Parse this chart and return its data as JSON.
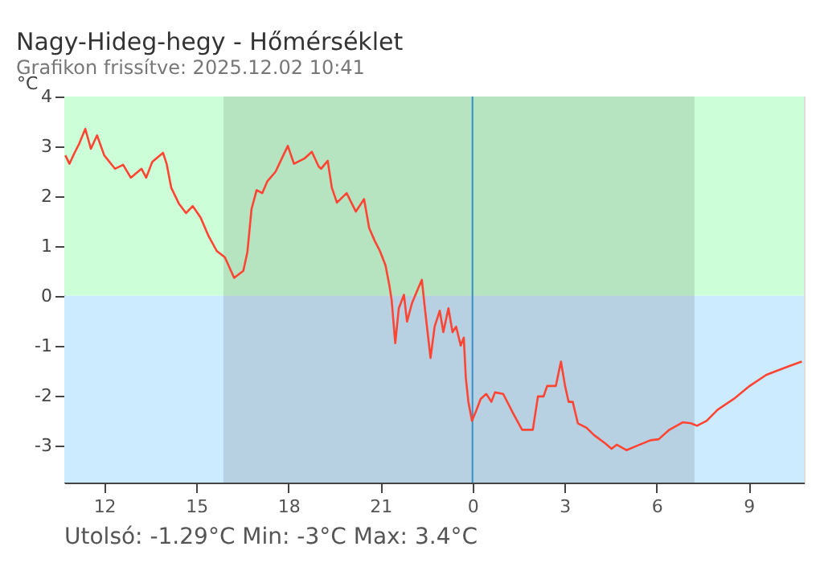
{
  "chart_data": {
    "type": "line",
    "title": "Nagy-Hideg-hegy - Hőmérséklet",
    "subtitle": "Grafikon frissítve: 2025.12.02 10:41",
    "ylabel": "°C",
    "annotations": [
      "Utolsó: -1.29°C  Min: -3°C  Max: 3.4°C"
    ],
    "xlim": [
      "2025-12-01T10:42",
      "2025-12-02T10:48"
    ],
    "ylim": [
      -3.75,
      4
    ],
    "xticks": [
      {
        "value": "2025-12-01T12:00",
        "label": "12"
      },
      {
        "value": "2025-12-01T15:00",
        "label": "15"
      },
      {
        "value": "2025-12-01T18:00",
        "label": "18"
      },
      {
        "value": "2025-12-01T21:00",
        "label": "21"
      },
      {
        "value": "2025-12-02T00:00",
        "label": "0"
      },
      {
        "value": "2025-12-02T03:00",
        "label": "3"
      },
      {
        "value": "2025-12-02T06:00",
        "label": "6"
      },
      {
        "value": "2025-12-02T09:00",
        "label": "9"
      }
    ],
    "yticks": [
      -3,
      -2,
      -1,
      0,
      1,
      2,
      3,
      4
    ],
    "grid": false,
    "line_style": "solid",
    "marker": "none",
    "bands": [
      {
        "axis": "y",
        "from": 0,
        "to": 4,
        "label": null,
        "color": "#ccffd8"
      },
      {
        "axis": "y",
        "from": -3.75,
        "to": 0,
        "label": null,
        "color": "#cdebff"
      },
      {
        "axis": "x",
        "from": "2025-12-01T15:53",
        "to": "2025-12-02T07:14",
        "label": null,
        "color": "#1c1c1c"
      }
    ],
    "ref_lines": [
      {
        "axis": "x",
        "value": "2025-12-02T00:00",
        "label": null,
        "color": "#3a8fc8"
      }
    ],
    "series": [
      {
        "color": "#ff4433",
        "x": [
          "2025-12-01T10:44",
          "2025-12-01T10:52",
          "2025-12-01T11:02",
          "2025-12-01T11:11",
          "2025-12-01T11:23",
          "2025-12-01T11:34",
          "2025-12-01T11:46",
          "2025-12-01T12:00",
          "2025-12-01T12:21",
          "2025-12-01T12:37",
          "2025-12-01T12:52",
          "2025-12-01T13:13",
          "2025-12-01T13:22",
          "2025-12-01T13:34",
          "2025-12-01T13:55",
          "2025-12-01T14:02",
          "2025-12-01T14:11",
          "2025-12-01T14:26",
          "2025-12-01T14:40",
          "2025-12-01T14:53",
          "2025-12-01T15:08",
          "2025-12-01T15:24",
          "2025-12-01T15:40",
          "2025-12-01T15:56",
          "2025-12-01T16:14",
          "2025-12-01T16:32",
          "2025-12-01T16:40",
          "2025-12-01T16:48",
          "2025-12-01T16:58",
          "2025-12-01T17:09",
          "2025-12-01T17:19",
          "2025-12-01T17:35",
          "2025-12-01T17:46",
          "2025-12-01T17:59",
          "2025-12-01T18:11",
          "2025-12-01T18:32",
          "2025-12-01T18:46",
          "2025-12-01T18:59",
          "2025-12-01T19:04",
          "2025-12-01T19:17",
          "2025-12-01T19:25",
          "2025-12-01T19:35",
          "2025-12-01T19:54",
          "2025-12-01T20:12",
          "2025-12-01T20:28",
          "2025-12-01T20:38",
          "2025-12-01T20:49",
          "2025-12-01T20:59",
          "2025-12-01T21:10",
          "2025-12-01T21:18",
          "2025-12-01T21:22",
          "2025-12-01T21:29",
          "2025-12-01T21:36",
          "2025-12-01T21:46",
          "2025-12-01T21:52",
          "2025-12-01T22:02",
          "2025-12-01T22:13",
          "2025-12-01T22:21",
          "2025-12-01T22:28",
          "2025-12-01T22:38",
          "2025-12-01T22:46",
          "2025-12-01T22:56",
          "2025-12-01T23:03",
          "2025-12-01T23:13",
          "2025-12-01T23:21",
          "2025-12-01T23:28",
          "2025-12-01T23:37",
          "2025-12-01T23:43",
          "2025-12-01T23:47",
          "2025-12-01T23:52",
          "2025-12-01T23:59",
          "2025-12-02T00:08",
          "2025-12-02T00:16",
          "2025-12-02T00:27",
          "2025-12-02T00:37",
          "2025-12-02T00:44",
          "2025-12-02T01:00",
          "2025-12-02T01:19",
          "2025-12-02T01:37",
          "2025-12-02T01:58",
          "2025-12-02T02:08",
          "2025-12-02T02:19",
          "2025-12-02T02:26",
          "2025-12-02T02:43",
          "2025-12-02T02:53",
          "2025-12-02T03:01",
          "2025-12-02T03:08",
          "2025-12-02T03:16",
          "2025-12-02T03:26",
          "2025-12-02T03:43",
          "2025-12-02T03:58",
          "2025-12-02T04:19",
          "2025-12-02T04:32",
          "2025-12-02T04:42",
          "2025-12-02T05:01",
          "2025-12-02T05:22",
          "2025-12-02T05:48",
          "2025-12-02T06:04",
          "2025-12-02T06:25",
          "2025-12-02T06:51",
          "2025-12-02T07:07",
          "2025-12-02T07:19",
          "2025-12-02T07:38",
          "2025-12-02T07:59",
          "2025-12-02T08:31",
          "2025-12-02T09:02",
          "2025-12-02T09:34",
          "2025-12-02T09:54",
          "2025-12-02T10:20",
          "2025-12-02T10:44"
        ],
        "values": [
          2.82,
          2.65,
          2.87,
          3.05,
          3.35,
          2.95,
          3.22,
          2.82,
          2.55,
          2.63,
          2.37,
          2.55,
          2.37,
          2.69,
          2.87,
          2.65,
          2.17,
          1.85,
          1.66,
          1.8,
          1.58,
          1.2,
          0.9,
          0.77,
          0.36,
          0.5,
          0.88,
          1.74,
          2.12,
          2.06,
          2.3,
          2.49,
          2.73,
          3.01,
          2.65,
          2.76,
          2.89,
          2.6,
          2.55,
          2.71,
          2.17,
          1.87,
          2.06,
          1.69,
          1.94,
          1.36,
          1.1,
          0.9,
          0.61,
          0.18,
          -0.09,
          -0.95,
          -0.25,
          0.02,
          -0.52,
          -0.14,
          0.13,
          0.32,
          -0.35,
          -1.25,
          -0.62,
          -0.3,
          -0.73,
          -0.25,
          -0.73,
          -0.62,
          -1.0,
          -0.84,
          -1.65,
          -2.13,
          -2.51,
          -2.29,
          -2.07,
          -1.97,
          -2.13,
          -1.94,
          -1.97,
          -2.35,
          -2.69,
          -2.69,
          -2.02,
          -2.02,
          -1.81,
          -1.81,
          -1.32,
          -1.81,
          -2.13,
          -2.13,
          -2.56,
          -2.65,
          -2.8,
          -2.96,
          -3.07,
          -2.99,
          -3.1,
          -3.01,
          -2.9,
          -2.88,
          -2.69,
          -2.54,
          -2.56,
          -2.61,
          -2.51,
          -2.29,
          -2.07,
          -1.81,
          -1.59,
          -1.51,
          -1.41,
          -1.32
        ]
      }
    ]
  }
}
